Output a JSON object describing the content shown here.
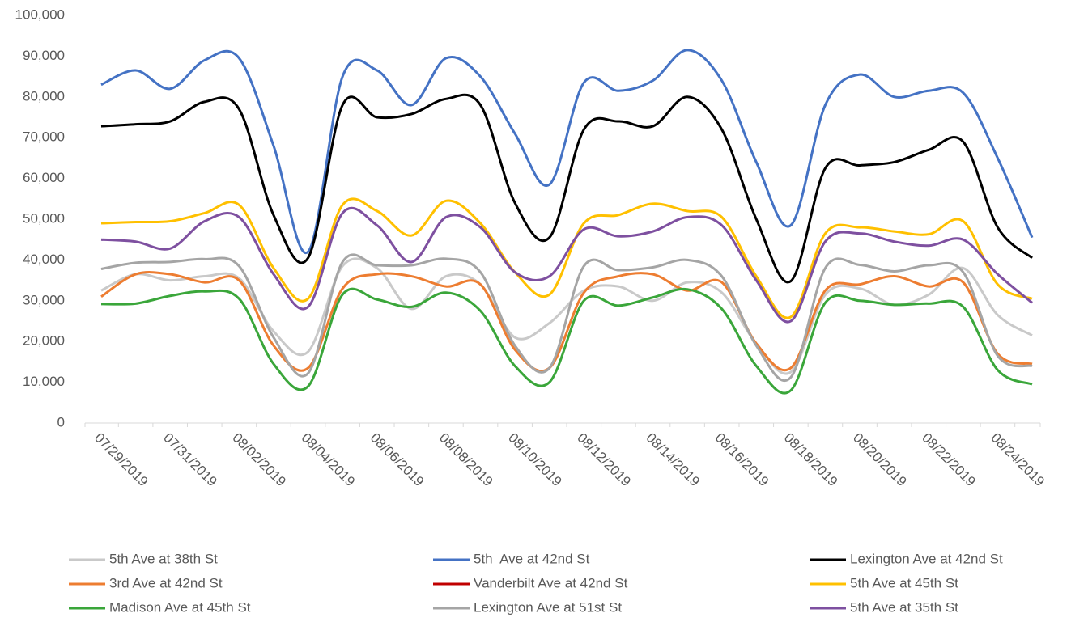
{
  "chart_data": {
    "type": "line",
    "categories": [
      "07/29/2019",
      null,
      "07/31/2019",
      null,
      "08/02/2019",
      null,
      "08/04/2019",
      null,
      "08/06/2019",
      null,
      "08/08/2019",
      null,
      "08/10/2019",
      null,
      "08/12/2019",
      null,
      "08/14/2019",
      null,
      "08/16/2019",
      null,
      "08/18/2019",
      null,
      "08/20/2019",
      null,
      "08/22/2019",
      null,
      "08/24/2019",
      null
    ],
    "ylim": [
      0,
      100000
    ],
    "yticks": [
      {
        "value": 0,
        "label": "0"
      },
      {
        "value": 10000,
        "label": "10,000"
      },
      {
        "value": 20000,
        "label": "20,000"
      },
      {
        "value": 30000,
        "label": "30,000"
      },
      {
        "value": 40000,
        "label": "40,000"
      },
      {
        "value": 50000,
        "label": "50,000"
      },
      {
        "value": 60000,
        "label": "60,000"
      },
      {
        "value": 70000,
        "label": "70,000"
      },
      {
        "value": 80000,
        "label": "80,000"
      },
      {
        "value": 90000,
        "label": "90,000"
      },
      {
        "value": 100000,
        "label": "100,000"
      }
    ],
    "series": [
      {
        "name": "5th Ave at 38th St",
        "color": "#c9c9c9",
        "values": [
          32500,
          36500,
          35000,
          36000,
          35500,
          22500,
          17500,
          38500,
          38000,
          28000,
          36000,
          34000,
          21000,
          24500,
          32500,
          33500,
          30000,
          34500,
          32000,
          19500,
          12500,
          31500,
          33000,
          29000,
          31500,
          38000,
          26500,
          21500
        ]
      },
      {
        "name": "5th  Ave at 42nd St",
        "color": "#4472c4",
        "values": [
          83000,
          86500,
          82000,
          89000,
          89500,
          68000,
          42000,
          85000,
          86500,
          78000,
          89500,
          85000,
          71000,
          58500,
          83500,
          81500,
          84000,
          91500,
          84000,
          64000,
          48500,
          78000,
          85500,
          80000,
          81500,
          81000,
          65000,
          45500
        ]
      },
      {
        "name": "Lexington Ave at 42nd St",
        "color": "#000000",
        "values": [
          72800,
          73300,
          74000,
          78800,
          77000,
          51000,
          40500,
          78000,
          75000,
          75800,
          79500,
          78000,
          54000,
          45500,
          72000,
          74000,
          72800,
          80000,
          72000,
          50000,
          34800,
          62500,
          63200,
          64000,
          67000,
          69000,
          48000,
          40500
        ]
      },
      {
        "name": "3rd Ave at 42nd St",
        "color": "#ed7d31",
        "values": [
          31000,
          36500,
          36500,
          34500,
          35000,
          19000,
          13500,
          33000,
          36500,
          36000,
          33500,
          34000,
          18000,
          13500,
          32000,
          36000,
          36500,
          32500,
          34500,
          19500,
          13500,
          32500,
          34000,
          36000,
          33500,
          34500,
          17000,
          14500
        ]
      },
      {
        "name": "Vanderbilt Ave at 42nd St",
        "color": "#c00000",
        "values": [
          null,
          null,
          null,
          null,
          null,
          null,
          null,
          null,
          null,
          null,
          null,
          null,
          null,
          null,
          null,
          null,
          null,
          null,
          null,
          null,
          null,
          null,
          null,
          null,
          null,
          null,
          null,
          null
        ]
      },
      {
        "name": "5th Ave at 45th St",
        "color": "#ffc000",
        "values": [
          49000,
          49300,
          49500,
          51500,
          53500,
          38000,
          30500,
          53500,
          52000,
          46000,
          54500,
          49000,
          37000,
          31500,
          49000,
          51000,
          53800,
          52000,
          50500,
          36000,
          26000,
          46500,
          48000,
          47000,
          46300,
          49500,
          34000,
          30500
        ]
      },
      {
        "name": "Madison Ave at 45th St",
        "color": "#3aa63a",
        "values": [
          29200,
          29300,
          31200,
          32300,
          30500,
          14500,
          9000,
          31500,
          30300,
          28500,
          32000,
          27500,
          14000,
          10000,
          30000,
          28800,
          30800,
          32800,
          28000,
          14000,
          8000,
          29500,
          30000,
          29000,
          29300,
          28500,
          13000,
          9500
        ]
      },
      {
        "name": "Lexington Ave at 51st St",
        "color": "#a5a5a5",
        "values": [
          37800,
          39300,
          39500,
          40200,
          38500,
          21000,
          12200,
          39500,
          38700,
          38700,
          40300,
          37000,
          19000,
          13500,
          38500,
          37500,
          38200,
          40000,
          36000,
          19000,
          11200,
          38000,
          38800,
          37200,
          38700,
          37000,
          16500,
          14000
        ]
      },
      {
        "name": "5th Ave at 35th St",
        "color": "#7e50a0",
        "values": [
          45000,
          44500,
          42800,
          49500,
          50500,
          36500,
          28500,
          51500,
          48500,
          39500,
          50500,
          48000,
          37000,
          36000,
          47500,
          45800,
          47000,
          50500,
          48500,
          35000,
          25000,
          44500,
          46500,
          44500,
          43500,
          45000,
          36500,
          29500
        ]
      }
    ]
  }
}
